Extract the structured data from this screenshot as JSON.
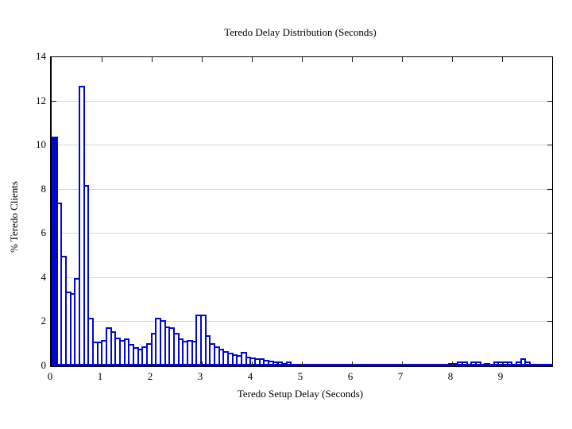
{
  "figure": {
    "title": "Teredo Delay Distribution (Seconds)",
    "background_color": "#ffffff",
    "frame_color": "#000000",
    "gridline_color": "#d7d7d7",
    "bar_edge_color": "#0008d0",
    "bar_fill_color": "#ffffff",
    "first_bar_fill_color": "#0008d0"
  },
  "chart_data": {
    "type": "bar",
    "subtype": "histogram",
    "title": "Teredo Delay Distribution (Seconds)",
    "xlabel": "Teredo Setup Delay (Seconds)",
    "ylabel": "% Teredo Clients",
    "xlim": [
      0,
      10
    ],
    "ylim": [
      0,
      14
    ],
    "x_tick_labels": [
      "0",
      "1",
      "2",
      "3",
      "4",
      "5",
      "6",
      "7",
      "8",
      "9"
    ],
    "x_tick_values": [
      0,
      1,
      2,
      3,
      4,
      5,
      6,
      7,
      8,
      9
    ],
    "y_tick_labels": [
      "0",
      "2",
      "4",
      "6",
      "8",
      "10",
      "12",
      "14"
    ],
    "y_tick_values": [
      0,
      2,
      4,
      6,
      8,
      10,
      12,
      14
    ],
    "grid": "horizontal-only",
    "legend": "none",
    "bin_width": 0.09,
    "first_bin_start": 0,
    "values": [
      10.4,
      7.4,
      5.0,
      3.4,
      3.3,
      4.0,
      12.7,
      8.2,
      2.2,
      1.1,
      1.1,
      1.2,
      1.75,
      1.6,
      1.3,
      1.2,
      1.25,
      1.0,
      0.85,
      0.8,
      0.9,
      1.05,
      1.5,
      2.2,
      2.1,
      1.8,
      1.75,
      1.5,
      1.25,
      1.15,
      1.2,
      1.15,
      2.35,
      2.35,
      1.4,
      1.05,
      0.9,
      0.8,
      0.7,
      0.6,
      0.55,
      0.5,
      0.65,
      0.45,
      0.4,
      0.35,
      0.35,
      0.3,
      0.25,
      0.2,
      0.2,
      0.15,
      0.2,
      0.1,
      0.1,
      0.1,
      0.05,
      0.1,
      0.1,
      0.1,
      0.05,
      0.05,
      0,
      0,
      0.1,
      0,
      0.1,
      0,
      0,
      0.05,
      0,
      0,
      0,
      0,
      0,
      0.1,
      0.1,
      0.1,
      0.1,
      0,
      0.1,
      0.1,
      0,
      0,
      0,
      0,
      0.1,
      0.1,
      0.15,
      0.15,
      0.2,
      0.2,
      0,
      0.2,
      0.2,
      0,
      0.15,
      0,
      0.2,
      0.2,
      0.2,
      0.2,
      0,
      0.2,
      0.35,
      0.2,
      0,
      0,
      0,
      0,
      0
    ]
  }
}
